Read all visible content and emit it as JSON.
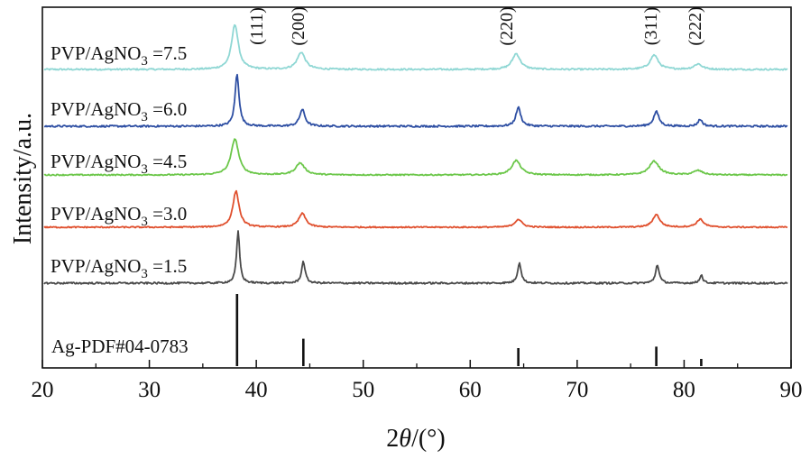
{
  "chart_data": {
    "type": "line",
    "title": "",
    "xlabel": {
      "prefix": "2",
      "italic": "θ",
      "suffix": "/(°)"
    },
    "ylabel": "Intensity/a.u.",
    "xlim": [
      20,
      90
    ],
    "xticks": [
      "20",
      "30",
      "40",
      "50",
      "60",
      "70",
      "80",
      "90"
    ],
    "grid": false,
    "legend": "inline labels left of each trace",
    "peak_labels": [
      {
        "text": "(111)",
        "x": 38.2
      },
      {
        "text": "(200)",
        "x": 44.3
      },
      {
        "text": "(220)",
        "x": 64.4
      },
      {
        "text": "(311)",
        "x": 77.4
      },
      {
        "text": "(222)",
        "x": 81.5
      }
    ],
    "series": [
      {
        "name_main": "PVP/AgNO",
        "name_sub": "3",
        "name_tail": " =7.5",
        "color": "#8fd7d4",
        "peaks": [
          {
            "x": 38.0,
            "rel_height": 1.0,
            "fwhm": 0.75
          },
          {
            "x": 44.2,
            "rel_height": 0.38,
            "fwhm": 0.9
          },
          {
            "x": 64.3,
            "rel_height": 0.35,
            "fwhm": 0.9
          },
          {
            "x": 77.2,
            "rel_height": 0.32,
            "fwhm": 0.9
          },
          {
            "x": 81.3,
            "rel_height": 0.12,
            "fwhm": 0.9
          }
        ]
      },
      {
        "name_main": "PVP/AgNO",
        "name_sub": "3",
        "name_tail": " =6.0",
        "color": "#2e4fa3",
        "peaks": [
          {
            "x": 38.2,
            "rel_height": 1.0,
            "fwhm": 0.45
          },
          {
            "x": 44.3,
            "rel_height": 0.32,
            "fwhm": 0.6
          },
          {
            "x": 64.5,
            "rel_height": 0.36,
            "fwhm": 0.55
          },
          {
            "x": 77.4,
            "rel_height": 0.28,
            "fwhm": 0.6
          },
          {
            "x": 81.5,
            "rel_height": 0.13,
            "fwhm": 0.5
          }
        ]
      },
      {
        "name_main": "PVP/AgNO",
        "name_sub": "3",
        "name_tail": " =4.5",
        "color": "#6cc74a",
        "peaks": [
          {
            "x": 38.0,
            "rel_height": 1.0,
            "fwhm": 0.85
          },
          {
            "x": 44.1,
            "rel_height": 0.33,
            "fwhm": 1.0
          },
          {
            "x": 64.3,
            "rel_height": 0.4,
            "fwhm": 1.0
          },
          {
            "x": 77.2,
            "rel_height": 0.38,
            "fwhm": 1.1
          },
          {
            "x": 81.3,
            "rel_height": 0.12,
            "fwhm": 1.0
          }
        ]
      },
      {
        "name_main": "PVP/AgNO",
        "name_sub": "3",
        "name_tail": " =3.0",
        "color": "#e0502e",
        "peaks": [
          {
            "x": 38.1,
            "rel_height": 1.0,
            "fwhm": 0.7
          },
          {
            "x": 44.3,
            "rel_height": 0.38,
            "fwhm": 0.8
          },
          {
            "x": 64.5,
            "rel_height": 0.22,
            "fwhm": 0.8
          },
          {
            "x": 77.4,
            "rel_height": 0.35,
            "fwhm": 0.8
          },
          {
            "x": 81.5,
            "rel_height": 0.22,
            "fwhm": 0.8
          }
        ]
      },
      {
        "name_main": "PVP/AgNO",
        "name_sub": "3",
        "name_tail": " =1.5",
        "color": "#4a4a4a",
        "peaks": [
          {
            "x": 38.3,
            "rel_height": 1.0,
            "fwhm": 0.35
          },
          {
            "x": 44.4,
            "rel_height": 0.42,
            "fwhm": 0.4
          },
          {
            "x": 64.6,
            "rel_height": 0.4,
            "fwhm": 0.4
          },
          {
            "x": 77.5,
            "rel_height": 0.36,
            "fwhm": 0.4
          },
          {
            "x": 81.6,
            "rel_height": 0.16,
            "fwhm": 0.35
          }
        ]
      }
    ],
    "reference": {
      "label": "Ag-PDF#04-0783",
      "sticks": [
        {
          "x": 38.2,
          "rel_height": 1.0
        },
        {
          "x": 44.4,
          "rel_height": 0.38
        },
        {
          "x": 64.5,
          "rel_height": 0.25
        },
        {
          "x": 77.4,
          "rel_height": 0.27
        },
        {
          "x": 81.6,
          "rel_height": 0.1
        }
      ]
    }
  }
}
